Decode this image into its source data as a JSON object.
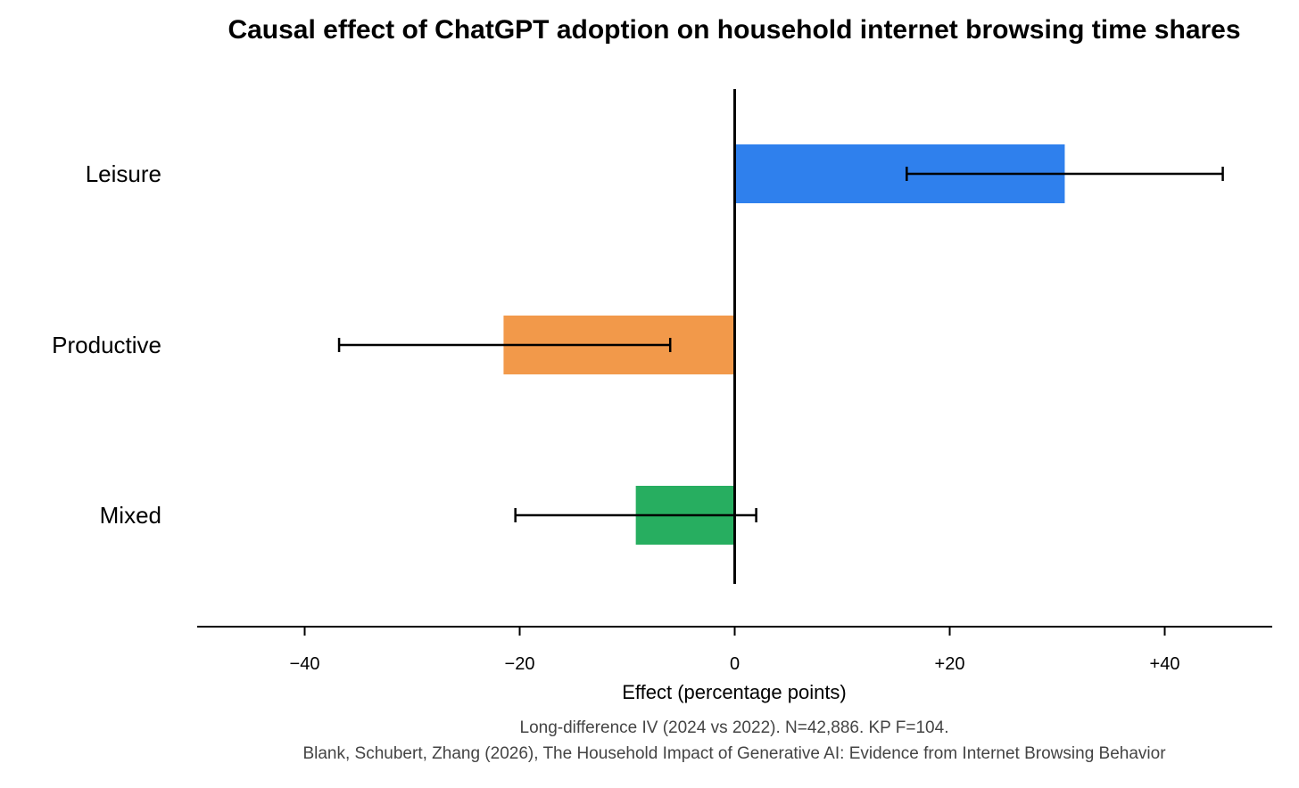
{
  "chart_data": {
    "type": "bar",
    "orientation": "horizontal",
    "title": "Causal effect of ChatGPT adoption on household internet browsing time shares",
    "categories": [
      "Leisure",
      "Productive",
      "Mixed"
    ],
    "values": [
      30.7,
      -21.5,
      -9.2
    ],
    "ci_low": [
      16.0,
      -36.8,
      -20.4
    ],
    "ci_high": [
      45.4,
      -6.0,
      2.0
    ],
    "colors": [
      "#2f80ed",
      "#f2994a",
      "#27ae60"
    ],
    "xlabel": "Effect (percentage points)",
    "ylabel": "",
    "xlim": [
      -50,
      50
    ],
    "xticks": [
      -40,
      -20,
      0,
      20,
      40
    ],
    "xtick_labels": [
      "−40",
      "−20",
      "0",
      "+20",
      "+40"
    ],
    "grid": false,
    "notes": [
      "Long-difference IV (2024 vs 2022). N=42,886. KP F=104.",
      "Blank, Schubert, Zhang (2026), The Household Impact of Generative AI: Evidence from Internet Browsing Behavior"
    ]
  }
}
